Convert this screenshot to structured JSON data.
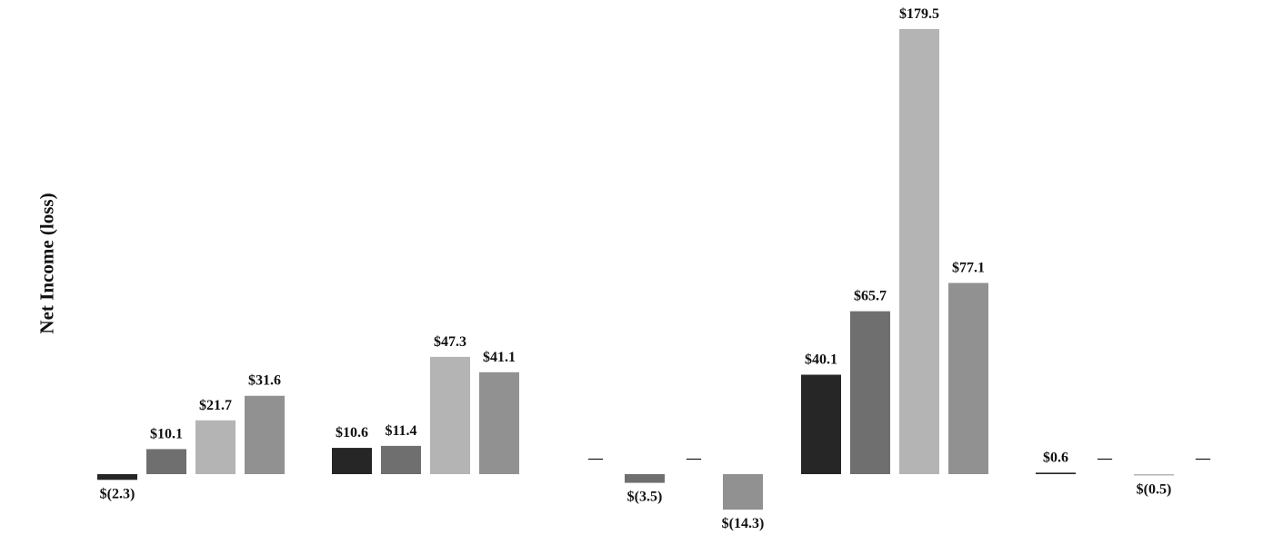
{
  "chart_data": {
    "type": "bar",
    "ylabel": "Net Income (loss)",
    "xlabel": "",
    "title": "",
    "categories": [
      "",
      "",
      "",
      "",
      ""
    ],
    "ylim": [
      -20,
      185
    ],
    "grid": false,
    "legend": "none",
    "colors": [
      "#262626",
      "#6f6f6f",
      "#b4b4b4",
      "#919191"
    ],
    "series": [
      {
        "values": [
          -2.3,
          10.6,
          0,
          40.1,
          0.6
        ],
        "labels": [
          "$(2.3)",
          "$10.6",
          "—",
          "$40.1",
          "$0.6"
        ]
      },
      {
        "values": [
          10.1,
          11.4,
          -3.5,
          65.7,
          0
        ],
        "labels": [
          "$10.1",
          "$11.4",
          "$(3.5)",
          "$65.7",
          "—"
        ]
      },
      {
        "values": [
          21.7,
          47.3,
          0,
          179.5,
          -0.5
        ],
        "labels": [
          "$21.7",
          "$47.3",
          "—",
          "$179.5",
          "$(0.5)"
        ]
      },
      {
        "values": [
          31.6,
          41.1,
          -14.3,
          77.1,
          0
        ],
        "labels": [
          "$31.6",
          "$41.1",
          "$(14.3)",
          "$77.1",
          "—"
        ]
      }
    ]
  }
}
